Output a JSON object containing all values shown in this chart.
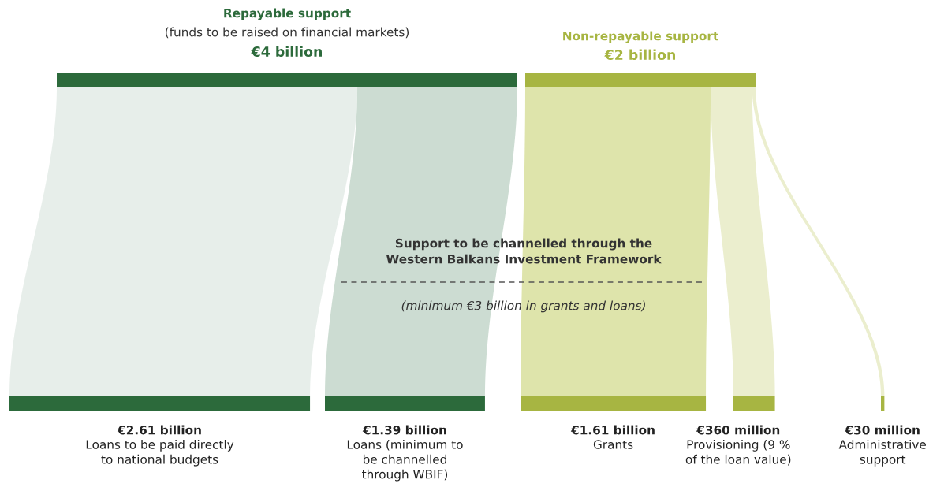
{
  "chart_data": {
    "type": "other",
    "categories": [
      "Loans to be paid directly\nto national budgets",
      "Loans (minimum to\nbe channelled\nthrough WBIF)",
      "Grants",
      "Provisioning (9 %\nof the loan value)",
      "Administrative\nsupport"
    ],
    "colors": [
      "#e3ebe6",
      "#c3d6ca",
      "#d8df9c",
      "#e7ebc6",
      "#e7ebc6"
    ],
    "series": [
      {
        "name": "Repayable support",
        "color": "#2c6a3b",
        "values": [
          2.61,
          1.39,
          null,
          null,
          null
        ],
        "value_labels": [
          "€2.61 billion",
          "€1.39 billion",
          null,
          null,
          null
        ]
      },
      {
        "name": "Non-repayable support",
        "color": "#a7b542",
        "values": [
          null,
          null,
          1.61,
          null,
          null
        ],
        "value_labels": [
          null,
          null,
          "€1.61 billion",
          null,
          null
        ]
      },
      {
        "color": "#a7b542",
        "values": [
          null,
          null,
          null,
          360,
          30
        ],
        "value_labels": [
          null,
          null,
          null,
          "€360 million",
          "€30 million"
        ]
      }
    ],
    "annotations": [
      "(funds to be raised on financial markets)",
      "€4 billion",
      "€2 billion",
      "Support to be channelled through the\nWestern Balkans Investment Framework",
      "(minimum €3 billion in grants and loans)"
    ]
  }
}
